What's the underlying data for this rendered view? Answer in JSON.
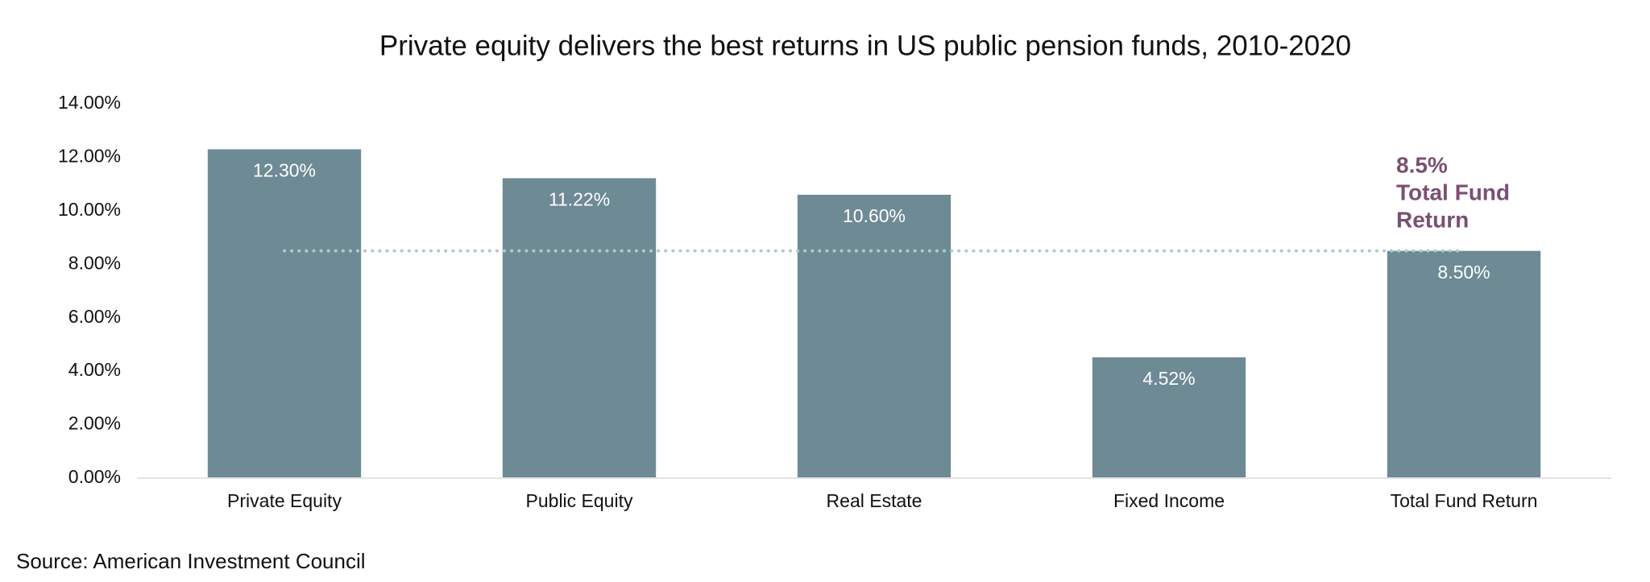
{
  "chart_data": {
    "type": "bar",
    "title": "Private equity delivers the best returns in US public pension funds, 2010-2020",
    "categories": [
      "Private Equity",
      "Public Equity",
      "Real Estate",
      "Fixed Income",
      "Total Fund Return"
    ],
    "values": [
      12.3,
      11.22,
      10.6,
      4.52,
      8.5
    ],
    "value_labels": [
      "12.30%",
      "11.22%",
      "10.60%",
      "4.52%",
      "8.50%"
    ],
    "color": "#6e8a95",
    "ylim": [
      0,
      14
    ],
    "yticks": [
      {
        "value": 0,
        "label": "0.00%"
      },
      {
        "value": 2,
        "label": "2.00%"
      },
      {
        "value": 4,
        "label": "4.00%"
      },
      {
        "value": 6,
        "label": "6.00%"
      },
      {
        "value": 8,
        "label": "8.00%"
      },
      {
        "value": 10,
        "label": "10.00%"
      },
      {
        "value": 12,
        "label": "12.00%"
      },
      {
        "value": 14,
        "label": "14.00%"
      }
    ],
    "grid": false,
    "reference_line": {
      "value": 8.5,
      "color": "#a8cfc6",
      "label_color": "#7b4f73",
      "label_lines": [
        "8.5%",
        "Total Fund",
        "Return"
      ]
    },
    "source": "Source: American Investment Council"
  }
}
